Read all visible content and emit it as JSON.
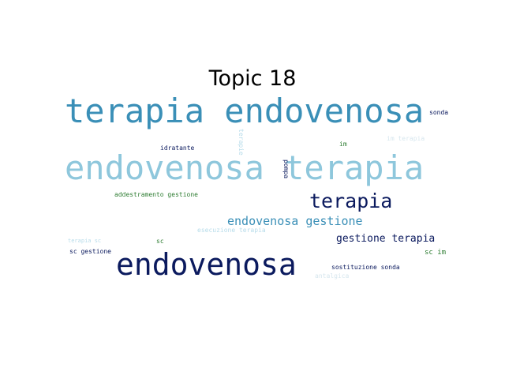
{
  "title": "Topic 18",
  "colors": {
    "navy": "#0b1a5e",
    "blue": "#3a8fb7",
    "light_blue": "#8ec7dc",
    "pale_blue": "#b7dcea",
    "green": "#2e7d32",
    "very_light": "#d6e6ee"
  },
  "words": [
    {
      "text": "terapia endovenosa",
      "color": "blue"
    },
    {
      "text": "endovenosa terapia",
      "color": "light_blue"
    },
    {
      "text": "endovenosa",
      "color": "navy"
    },
    {
      "text": "terapia",
      "color": "navy"
    },
    {
      "text": "endovenosa gestione",
      "color": "blue"
    },
    {
      "text": "gestione terapia",
      "color": "navy"
    },
    {
      "text": "sonda",
      "color": "navy"
    },
    {
      "text": "idratante",
      "color": "navy"
    },
    {
      "text": "terapie",
      "color": "pale_blue"
    },
    {
      "text": "im",
      "color": "green"
    },
    {
      "text": "im terapia",
      "color": "very_light"
    },
    {
      "text": "pompa",
      "color": "navy"
    },
    {
      "text": "addestramento gestione",
      "color": "green"
    },
    {
      "text": "esecuzione terapia",
      "color": "pale_blue"
    },
    {
      "text": "terapia sc",
      "color": "pale_blue"
    },
    {
      "text": "sc",
      "color": "green"
    },
    {
      "text": "sc gestione",
      "color": "navy"
    },
    {
      "text": "sc im",
      "color": "green"
    },
    {
      "text": "sostituzione sonda",
      "color": "navy"
    },
    {
      "text": "antalgica",
      "color": "very_light"
    }
  ]
}
